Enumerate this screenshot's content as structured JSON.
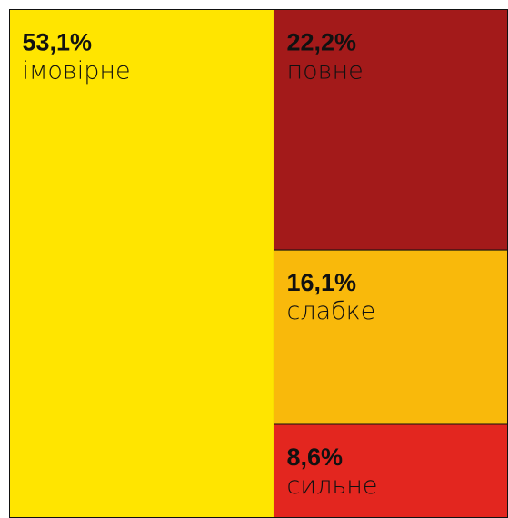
{
  "chart_data": {
    "type": "treemap",
    "categories": [
      "імовірне",
      "повне",
      "слабке",
      "сильне"
    ],
    "values": [
      53.1,
      22.2,
      16.1,
      8.6
    ],
    "value_labels": [
      "53,1%",
      "22,2%",
      "16,1%",
      "8,6%"
    ],
    "colors": [
      "#FFE500",
      "#A31A1A",
      "#F9B90B",
      "#E3261F"
    ]
  }
}
